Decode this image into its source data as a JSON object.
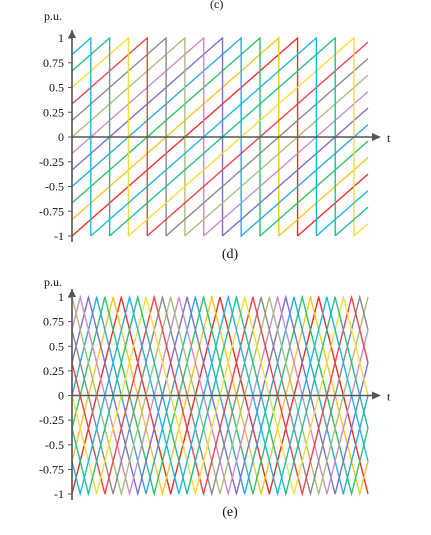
{
  "top_partial_caption": "(c)",
  "colors": [
    "#e8312a",
    "#f6c624",
    "#2ec466",
    "#2fa8e0",
    "#7b6fd0",
    "#d08bc4",
    "#a9bf7c",
    "#8a8a8a",
    "#f0424a",
    "#f4dd3a",
    "#22c08f",
    "#1fb5e8"
  ],
  "chart_data": [
    {
      "type": "line",
      "caption": "(d)",
      "ylabel": "p.u.",
      "xlabel": "t",
      "ylim": [
        -1,
        1
      ],
      "yticks": [
        {
          "value": 1,
          "label": "1"
        },
        {
          "value": 0.75,
          "label": "0.75"
        },
        {
          "value": 0.5,
          "label": "0.5"
        },
        {
          "value": 0.25,
          "label": "0.25"
        },
        {
          "value": 0,
          "label": "0"
        },
        {
          "value": -0.25,
          "label": "-0.25"
        },
        {
          "value": -0.5,
          "label": "-0.5"
        },
        {
          "value": -0.75,
          "label": "-0.75"
        },
        {
          "value": -1,
          "label": "-1"
        }
      ],
      "waveform": "sawtooth",
      "period": 8,
      "x_range": [
        0,
        10.5
      ],
      "phase_offsets": [
        0,
        1,
        2,
        3,
        4,
        5,
        6,
        7,
        8,
        9,
        10,
        11
      ],
      "phase_step": 0.6667
    },
    {
      "type": "line",
      "caption": "(e)",
      "ylabel": "p.u.",
      "xlabel": "t",
      "ylim": [
        -1,
        1
      ],
      "yticks": [
        {
          "value": 1,
          "label": "1"
        },
        {
          "value": 0.75,
          "label": "0.75"
        },
        {
          "value": 0.5,
          "label": "0.5"
        },
        {
          "value": 0.25,
          "label": "0.25"
        },
        {
          "value": 0,
          "label": "0"
        },
        {
          "value": -0.25,
          "label": "-0.25"
        },
        {
          "value": -0.5,
          "label": "-0.5"
        },
        {
          "value": -0.75,
          "label": "-0.75"
        },
        {
          "value": -1,
          "label": "-1"
        }
      ],
      "waveform": "triangle",
      "period": 6,
      "x_range": [
        0,
        18
      ],
      "phase_offsets": [
        0,
        1,
        2,
        3,
        4,
        5,
        6,
        7,
        8,
        9,
        10,
        11
      ],
      "phase_step": 0.5
    }
  ]
}
